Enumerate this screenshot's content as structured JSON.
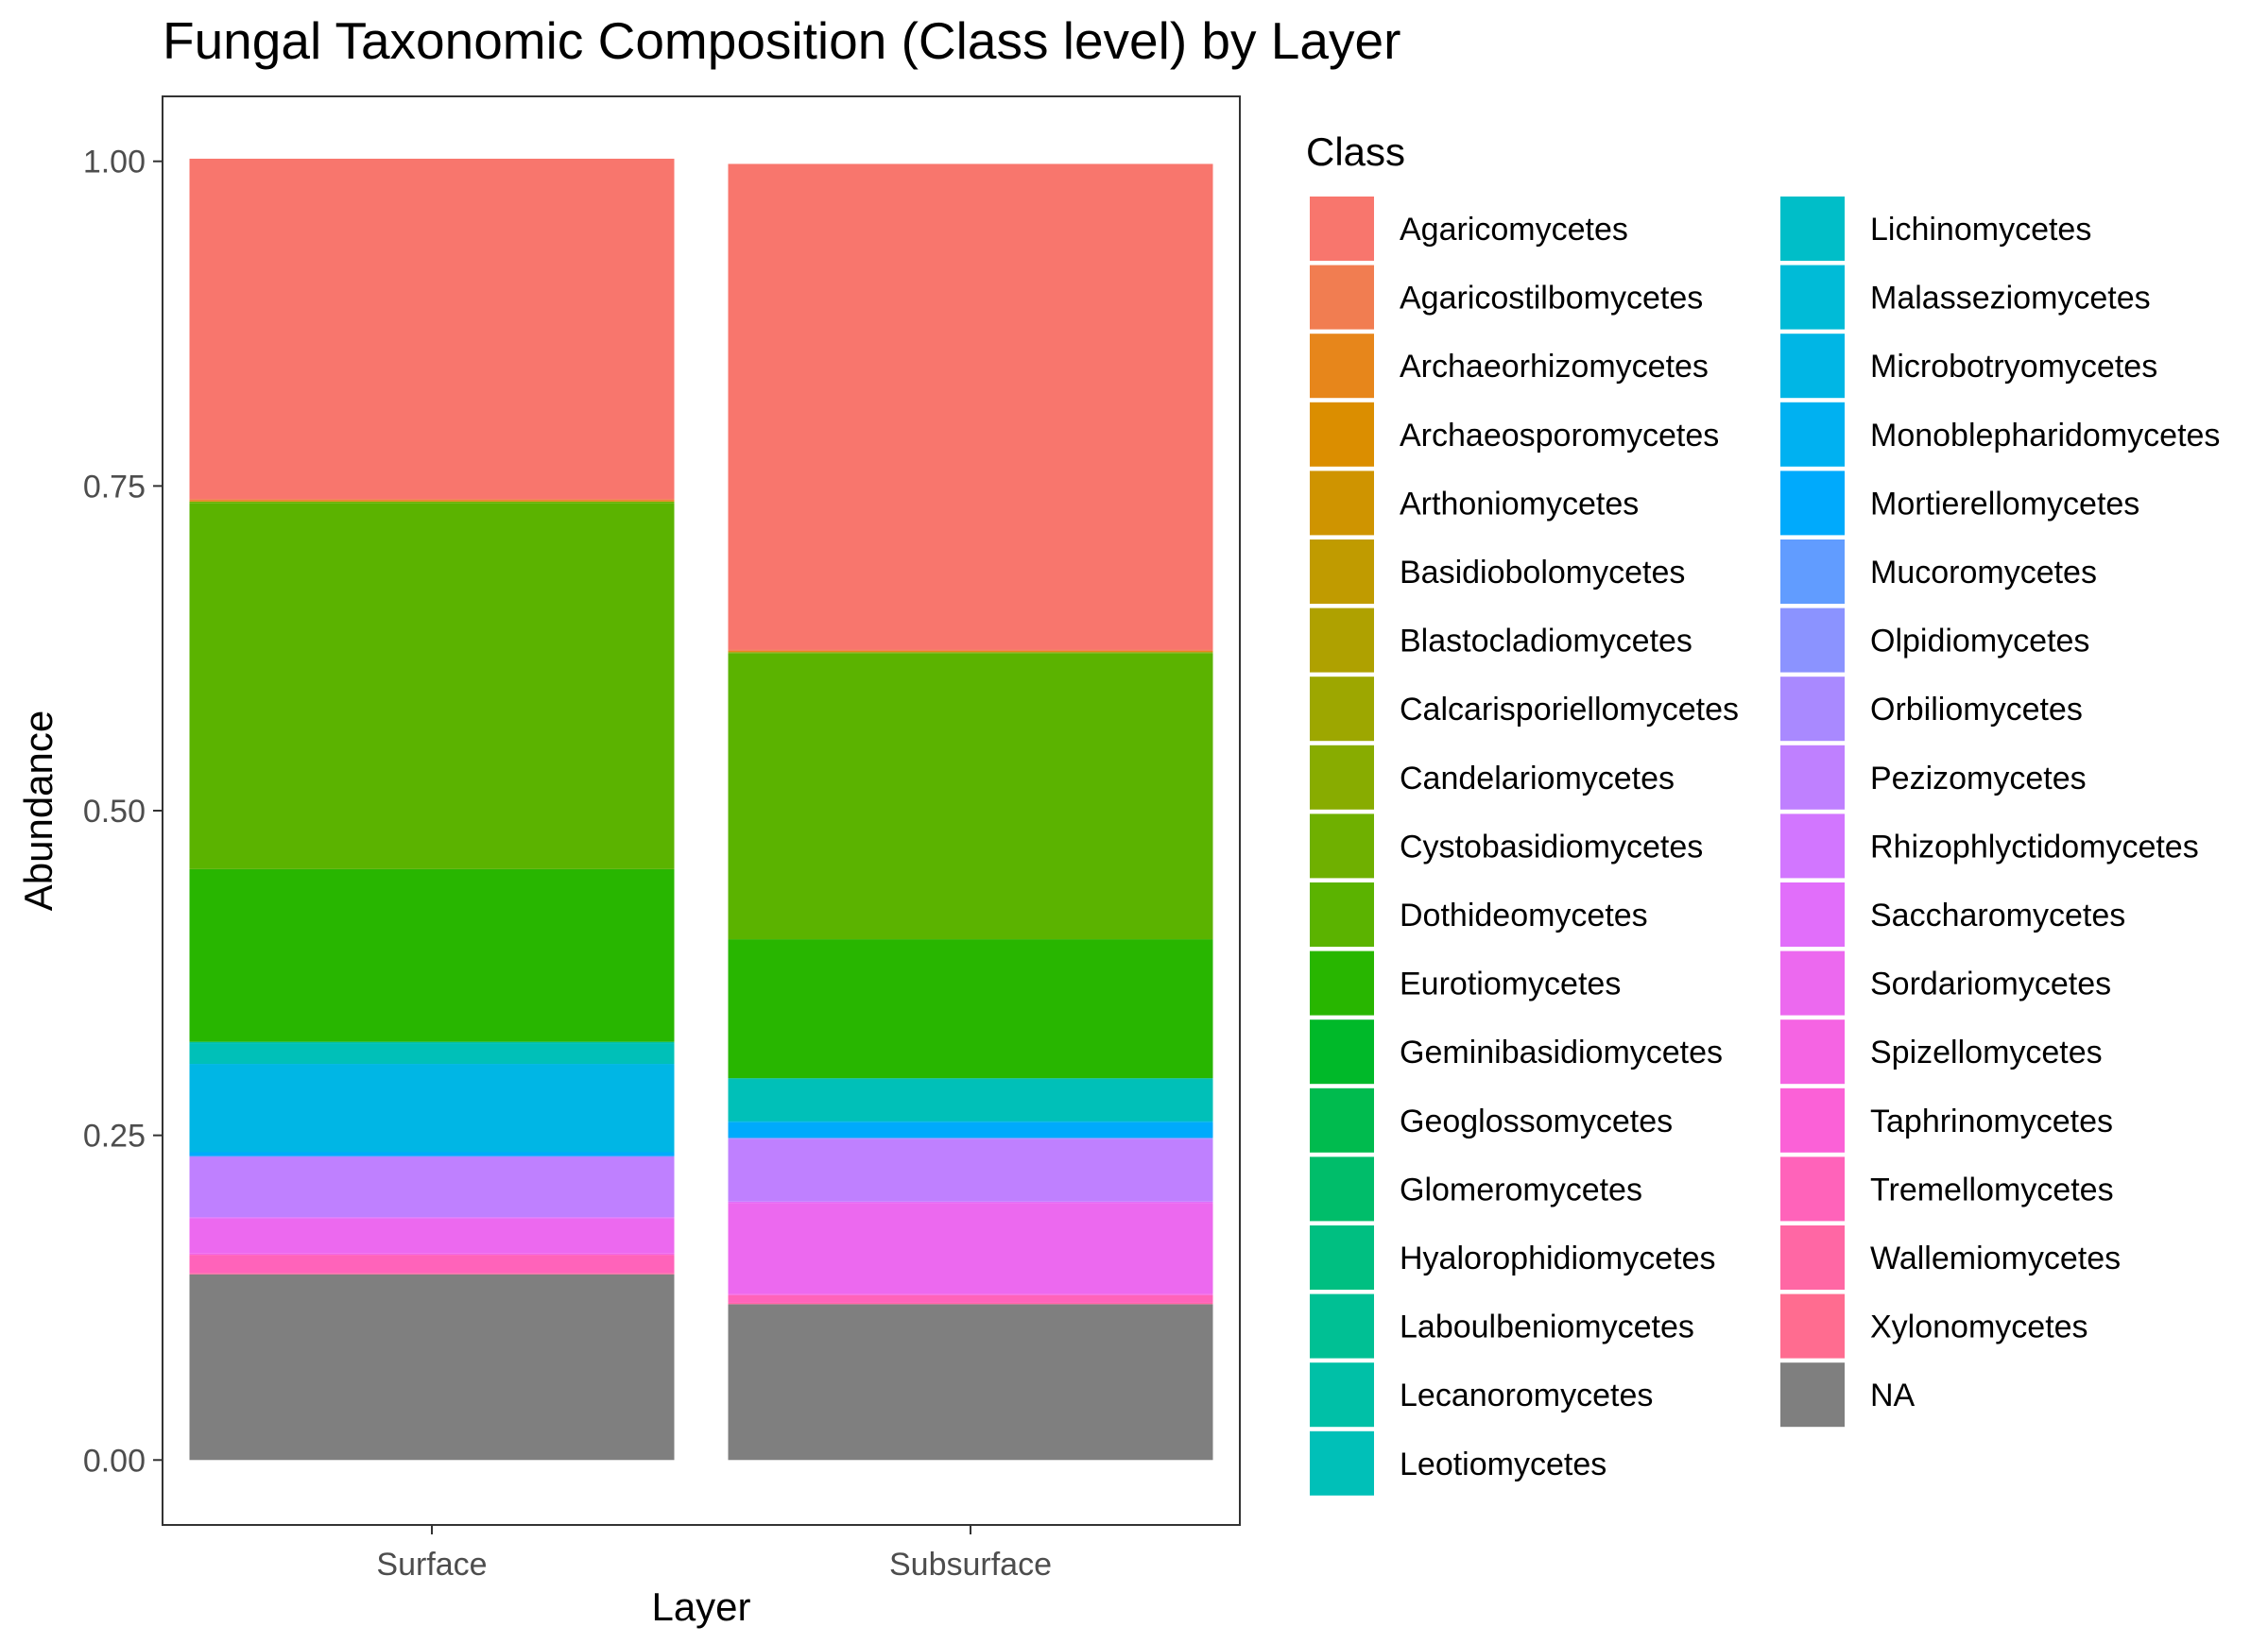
{
  "chart_data": {
    "type": "bar",
    "stacked": true,
    "title": "Fungal Taxonomic Composition (Class level) by Layer",
    "xlabel": "Layer",
    "ylabel": "Abundance",
    "categories": [
      "Surface",
      "Subsurface"
    ],
    "ylim": [
      -0.05,
      1.05
    ],
    "yticks": [
      "0.00",
      "0.25",
      "0.50",
      "0.75",
      "1.00"
    ],
    "ytick_values": [
      0,
      0.25,
      0.5,
      0.75,
      1.0
    ],
    "grid": false,
    "legend_position": "right",
    "legend_title": "Class",
    "series": [
      {
        "name": "Agaricomycetes",
        "color": "#F8766D",
        "values": [
          0.262,
          0.374
        ]
      },
      {
        "name": "Agaricostilbomycetes",
        "color": "#F17D51",
        "values": [
          0.001,
          0.001
        ]
      },
      {
        "name": "Archaeorhizomycetes",
        "color": "#E7861B",
        "values": [
          0.001,
          0.001
        ]
      },
      {
        "name": "Archaeosporomycetes",
        "color": "#DB8E00",
        "values": [
          0,
          0
        ]
      },
      {
        "name": "Arthoniomycetes",
        "color": "#CF9400",
        "values": [
          0,
          0
        ]
      },
      {
        "name": "Basidiobolomycetes",
        "color": "#C09B00",
        "values": [
          0,
          0
        ]
      },
      {
        "name": "Blastocladiomycetes",
        "color": "#AFA100",
        "values": [
          0,
          0
        ]
      },
      {
        "name": "Calcarisporiellomycetes",
        "color": "#9DA700",
        "values": [
          0,
          0
        ]
      },
      {
        "name": "Candelariomycetes",
        "color": "#88AC00",
        "values": [
          0,
          0
        ]
      },
      {
        "name": "Cystobasidiomycetes",
        "color": "#6FB000",
        "values": [
          0.001,
          0.001
        ]
      },
      {
        "name": "Dothideomycetes",
        "color": "#5BB300",
        "values": [
          0.282,
          0.22
        ]
      },
      {
        "name": "Eurotiomycetes",
        "color": "#28B600",
        "values": [
          0.133,
          0.107
        ]
      },
      {
        "name": "Geminibasidiomycetes",
        "color": "#00B929",
        "values": [
          0,
          0
        ]
      },
      {
        "name": "Geoglossomycetes",
        "color": "#00BB4E",
        "values": [
          0,
          0
        ]
      },
      {
        "name": "Glomeromycetes",
        "color": "#00BD6A",
        "values": [
          0,
          0
        ]
      },
      {
        "name": "Hyalorophidiomycetes",
        "color": "#00BF81",
        "values": [
          0,
          0
        ]
      },
      {
        "name": "Laboulbeniomycetes",
        "color": "#00C094",
        "values": [
          0,
          0
        ]
      },
      {
        "name": "Lecanoromycetes",
        "color": "#00C0A7",
        "values": [
          0.001,
          0.001
        ]
      },
      {
        "name": "Leotiomycetes",
        "color": "#00C0B8",
        "values": [
          0.016,
          0.032
        ]
      },
      {
        "name": "Lichinomycetes",
        "color": "#00BEC8",
        "values": [
          0,
          0
        ]
      },
      {
        "name": "Malasseziomycetes",
        "color": "#00BBD7",
        "values": [
          0,
          0
        ]
      },
      {
        "name": "Microbotryomycetes",
        "color": "#00B6E5",
        "values": [
          0.068,
          0.001
        ]
      },
      {
        "name": "Monoblepharidomycetes",
        "color": "#00B1F1",
        "values": [
          0,
          0
        ]
      },
      {
        "name": "Mortierellomycetes",
        "color": "#00AAFC",
        "values": [
          0.003,
          0.012
        ]
      },
      {
        "name": "Mucoromycetes",
        "color": "#619CFF",
        "values": [
          0,
          0
        ]
      },
      {
        "name": "Olpidiomycetes",
        "color": "#8B93FF",
        "values": [
          0,
          0
        ]
      },
      {
        "name": "Orbiliomycetes",
        "color": "#A989FF",
        "values": [
          0.001,
          0.001
        ]
      },
      {
        "name": "Pezizomycetes",
        "color": "#BF80FF",
        "values": [
          0.046,
          0.048
        ]
      },
      {
        "name": "Rhizophlyctidomycetes",
        "color": "#D276FF",
        "values": [
          0,
          0
        ]
      },
      {
        "name": "Saccharomycetes",
        "color": "#E16EFA",
        "values": [
          0.001,
          0.001
        ]
      },
      {
        "name": "Sordariomycetes",
        "color": "#EC69EF",
        "values": [
          0.027,
          0.07
        ]
      },
      {
        "name": "Spizellomycetes",
        "color": "#F564E3",
        "values": [
          0.001,
          0.001
        ]
      },
      {
        "name": "Taphrinomycetes",
        "color": "#FB61D7",
        "values": [
          0,
          0
        ]
      },
      {
        "name": "Tremellomycetes",
        "color": "#FF63BA",
        "values": [
          0.014,
          0.006
        ]
      },
      {
        "name": "Wallemiomycetes",
        "color": "#FF67A4",
        "values": [
          0.001,
          0.001
        ]
      },
      {
        "name": "Xylonomycetes",
        "color": "#FF6C90",
        "values": [
          0,
          0
        ]
      },
      {
        "name": "NA",
        "color": "#7F7F7F",
        "values": [
          0.143,
          0.12
        ]
      }
    ]
  }
}
